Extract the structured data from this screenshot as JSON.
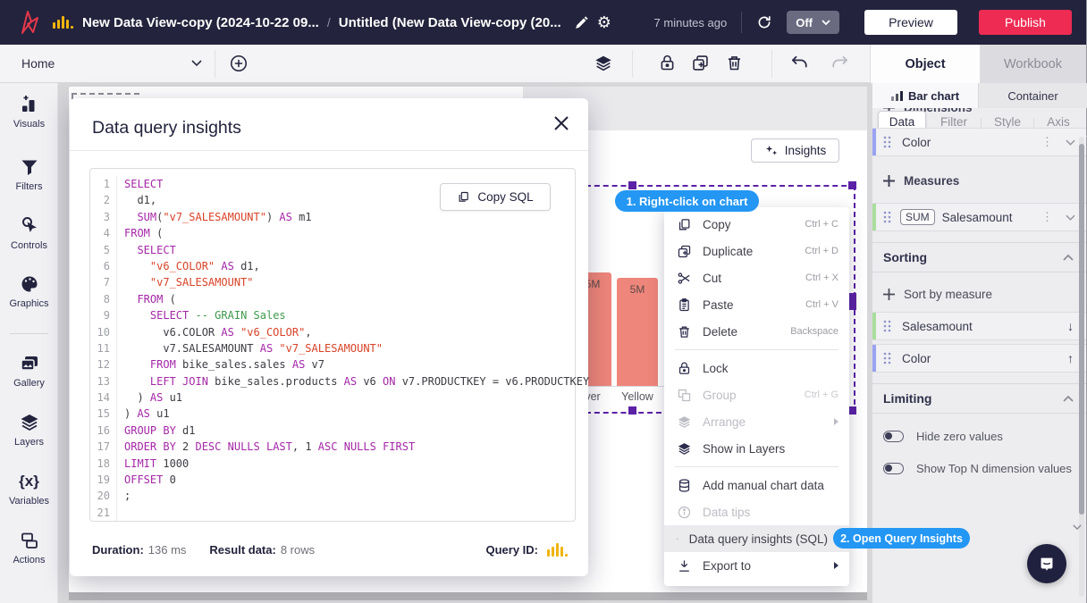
{
  "colors": {
    "navbar_bg": "#23233d",
    "publish_red": "#ee2b53",
    "brand_yellow": "#f0b40e",
    "badge_blue": "#2397f3",
    "selection_purple": "#5b21a6",
    "bar_fill": "#ef867b",
    "dimension_accent": "#9aa2f2",
    "measure_accent": "#a9de9c",
    "sql_keyword": "#a427a7",
    "sql_string": "#d84327",
    "sql_comment": "#3f9a4d"
  },
  "navbar": {
    "dataset_title": "New Data View-copy (2024-10-22 09...",
    "path_separator": "/",
    "page_title": "Untitled (New Data View-copy (20...",
    "last_edited": "7 minutes ago",
    "auto_refresh": "Off",
    "preview": "Preview",
    "publish": "Publish"
  },
  "toolbar": {
    "home": "Home"
  },
  "sidebar": {
    "items": [
      {
        "label": "Visuals"
      },
      {
        "label": "Filters"
      },
      {
        "label": "Controls"
      },
      {
        "label": "Graphics"
      },
      {
        "label": "Gallery"
      },
      {
        "label": "Layers"
      },
      {
        "label": "Variables"
      },
      {
        "label": "Actions"
      }
    ]
  },
  "chart": {
    "insights_button": "Insights"
  },
  "chart_data": {
    "type": "bar",
    "categories": [
      "ver",
      "Yellow"
    ],
    "values": [
      5000000,
      5000000
    ],
    "bar_labels": [
      "5M",
      "5M"
    ],
    "bar_color": "#ef867b",
    "title": "",
    "xlabel": "",
    "ylabel": ""
  },
  "badges": {
    "step1": "1. Right-click on chart",
    "step2": "2. Open Query Insights"
  },
  "context_menu": {
    "items": [
      {
        "label": "Copy",
        "shortcut": "Ctrl + C"
      },
      {
        "label": "Duplicate",
        "shortcut": "Ctrl + D"
      },
      {
        "label": "Cut",
        "shortcut": "Ctrl + X"
      },
      {
        "label": "Paste",
        "shortcut": "Ctrl + V"
      },
      {
        "label": "Delete",
        "shortcut": "Backspace"
      },
      {
        "label": "Lock"
      },
      {
        "label": "Group",
        "shortcut": "Ctrl + G",
        "disabled": true
      },
      {
        "label": "Arrange",
        "disabled": true,
        "submenu": true
      },
      {
        "label": "Show in Layers"
      },
      {
        "label": "Add manual chart data"
      },
      {
        "label": "Data tips",
        "disabled": true
      },
      {
        "label": "Data query insights (SQL)",
        "highlighted": true
      },
      {
        "label": "Export to",
        "submenu": true
      }
    ]
  },
  "modal": {
    "title": "Data query insights",
    "copy_sql": "Copy SQL",
    "footer": {
      "duration_label": "Duration:",
      "duration_value": "136 ms",
      "result_label": "Result data:",
      "result_value": "8 rows",
      "query_id_label": "Query ID:"
    },
    "sql_lines": [
      [
        [
          "k",
          "SELECT"
        ]
      ],
      [
        [
          "t",
          "  d1,"
        ]
      ],
      [
        [
          "t",
          "  "
        ],
        [
          "k",
          "SUM"
        ],
        [
          "t",
          "("
        ],
        [
          "s",
          "\"v7_SALESAMOUNT\""
        ],
        [
          "t",
          ") "
        ],
        [
          "k",
          "AS"
        ],
        [
          "t",
          " m1"
        ]
      ],
      [
        [
          "k",
          "FROM"
        ],
        [
          "t",
          " ("
        ]
      ],
      [
        [
          "t",
          "  "
        ],
        [
          "k",
          "SELECT"
        ]
      ],
      [
        [
          "t",
          "    "
        ],
        [
          "s",
          "\"v6_COLOR\""
        ],
        [
          "t",
          " "
        ],
        [
          "k",
          "AS"
        ],
        [
          "t",
          " d1,"
        ]
      ],
      [
        [
          "t",
          "    "
        ],
        [
          "s",
          "\"v7_SALESAMOUNT\""
        ]
      ],
      [
        [
          "t",
          "  "
        ],
        [
          "k",
          "FROM"
        ],
        [
          "t",
          " ("
        ]
      ],
      [
        [
          "t",
          "    "
        ],
        [
          "k",
          "SELECT"
        ],
        [
          "t",
          " "
        ],
        [
          "c",
          "-- GRAIN Sales"
        ]
      ],
      [
        [
          "t",
          "      v6.COLOR "
        ],
        [
          "k",
          "AS"
        ],
        [
          "t",
          " "
        ],
        [
          "s",
          "\"v6_COLOR\""
        ],
        [
          "t",
          ","
        ]
      ],
      [
        [
          "t",
          "      v7.SALESAMOUNT "
        ],
        [
          "k",
          "AS"
        ],
        [
          "t",
          " "
        ],
        [
          "s",
          "\"v7_SALESAMOUNT\""
        ]
      ],
      [
        [
          "t",
          "    "
        ],
        [
          "k",
          "FROM"
        ],
        [
          "t",
          " bike_sales.sales "
        ],
        [
          "k",
          "AS"
        ],
        [
          "t",
          " v7"
        ]
      ],
      [
        [
          "t",
          "    "
        ],
        [
          "k",
          "LEFT JOIN"
        ],
        [
          "t",
          " bike_sales.products "
        ],
        [
          "k",
          "AS"
        ],
        [
          "t",
          " v6 "
        ],
        [
          "k",
          "ON"
        ],
        [
          "t",
          " v7.PRODUCTKEY = v6.PRODUCTKEY"
        ]
      ],
      [
        [
          "t",
          "  ) "
        ],
        [
          "k",
          "AS"
        ],
        [
          "t",
          " u1"
        ]
      ],
      [
        [
          "t",
          ") "
        ],
        [
          "k",
          "AS"
        ],
        [
          "t",
          " u1"
        ]
      ],
      [
        [
          "k",
          "GROUP BY"
        ],
        [
          "t",
          " d1"
        ]
      ],
      [
        [
          "k",
          "ORDER BY"
        ],
        [
          "t",
          " 2 "
        ],
        [
          "k",
          "DESC"
        ],
        [
          "t",
          " "
        ],
        [
          "k",
          "NULLS"
        ],
        [
          "t",
          " "
        ],
        [
          "k",
          "LAST"
        ],
        [
          "t",
          ", 1 "
        ],
        [
          "k",
          "ASC"
        ],
        [
          "t",
          " "
        ],
        [
          "k",
          "NULLS"
        ],
        [
          "t",
          " "
        ],
        [
          "k",
          "FIRST"
        ]
      ],
      [
        [
          "k",
          "LIMIT"
        ],
        [
          "t",
          " 1000"
        ]
      ],
      [
        [
          "k",
          "OFFSET"
        ],
        [
          "t",
          " 0"
        ]
      ],
      [
        [
          "t",
          ";"
        ]
      ],
      []
    ]
  },
  "inspector": {
    "tabs": {
      "object": "Object",
      "workbook": "Workbook"
    },
    "object_type_tabs": {
      "active": "Bar chart",
      "other": "Container"
    },
    "view_tabs": [
      "Data",
      "Filter",
      "Style",
      "Axis"
    ],
    "dimensions": {
      "header": "Dimensions",
      "items": [
        {
          "label": "Color"
        }
      ]
    },
    "measures": {
      "header": "Measures",
      "items": [
        {
          "aggregation": "SUM",
          "label": "Salesamount"
        }
      ]
    },
    "sorting": {
      "header": "Sorting",
      "add_label": "Sort by measure",
      "items": [
        {
          "label": "Salesamount",
          "direction": "desc"
        },
        {
          "label": "Color",
          "direction": "asc"
        }
      ]
    },
    "limiting": {
      "header": "Limiting",
      "toggles": [
        {
          "label": "Hide zero values",
          "state": "off"
        },
        {
          "label": "Show Top N dimension values",
          "state": "off"
        }
      ]
    }
  }
}
